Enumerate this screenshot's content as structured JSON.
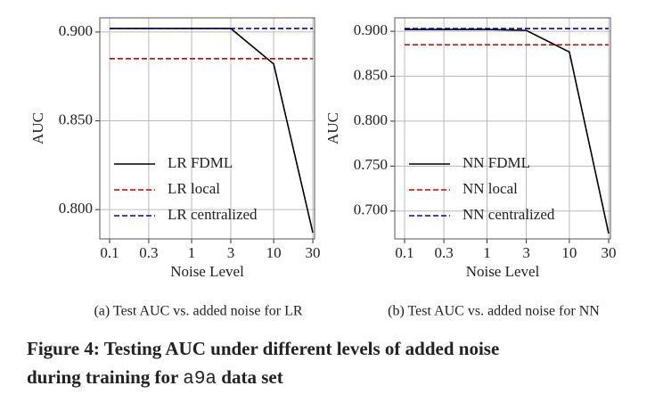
{
  "chart_data": [
    {
      "type": "line",
      "caption": "(a)  Test AUC vs. added noise for LR",
      "xlabel": "Noise Level",
      "ylabel": "AUC",
      "xscale": "log",
      "x": [
        0.1,
        0.3,
        1,
        3,
        10,
        30
      ],
      "xlim": [
        0.076,
        31.5
      ],
      "xticks": [
        0.1,
        0.3,
        1,
        3,
        10,
        30
      ],
      "ylim": [
        0.7835,
        0.908
      ],
      "yticks": [
        {
          "value": 0.8,
          "label": "0.800"
        },
        {
          "value": 0.85,
          "label": "0.850"
        },
        {
          "value": 0.9,
          "label": "0.900"
        }
      ],
      "grid": true,
      "legend": "lower left",
      "series": [
        {
          "name": "LR FDML",
          "color": "#000000",
          "dash": false,
          "values": [
            0.902,
            0.902,
            0.902,
            0.902,
            0.882,
            0.787
          ]
        },
        {
          "name": "LR local",
          "color": "#cc0000",
          "dash": true,
          "values": [
            0.885,
            0.885,
            0.885,
            0.885,
            0.885,
            0.885
          ]
        },
        {
          "name": "LR centralized",
          "color": "#0000bb",
          "dash": true,
          "values": [
            0.902,
            0.902,
            0.902,
            0.902,
            0.902,
            0.902
          ]
        }
      ]
    },
    {
      "type": "line",
      "caption": "(b)  Test AUC vs. added noise for NN",
      "xlabel": "Noise Level",
      "ylabel": "AUC",
      "xscale": "log",
      "x": [
        0.1,
        0.3,
        1,
        3,
        10,
        30
      ],
      "xlim": [
        0.076,
        31.5
      ],
      "xticks": [
        0.1,
        0.3,
        1,
        3,
        10,
        30
      ],
      "ylim": [
        0.669,
        0.915
      ],
      "yticks": [
        {
          "value": 0.7,
          "label": "0.700"
        },
        {
          "value": 0.75,
          "label": "0.750"
        },
        {
          "value": 0.8,
          "label": "0.800"
        },
        {
          "value": 0.85,
          "label": "0.850"
        },
        {
          "value": 0.9,
          "label": "0.900"
        }
      ],
      "grid": true,
      "legend": "lower left",
      "series": [
        {
          "name": "NN FDML",
          "color": "#000000",
          "dash": false,
          "values": [
            0.902,
            0.902,
            0.902,
            0.901,
            0.877,
            0.675
          ]
        },
        {
          "name": "NN local",
          "color": "#cc0000",
          "dash": true,
          "values": [
            0.885,
            0.885,
            0.885,
            0.885,
            0.885,
            0.885
          ]
        },
        {
          "name": "NN centralized",
          "color": "#0000bb",
          "dash": true,
          "values": [
            0.903,
            0.903,
            0.903,
            0.903,
            0.903,
            0.903
          ]
        }
      ]
    }
  ],
  "figure_caption": {
    "line1": "Figure 4: Testing AUC under different levels of added noise",
    "line2_start": "during training for ",
    "code": "a9a",
    "line2_end": " data set"
  }
}
